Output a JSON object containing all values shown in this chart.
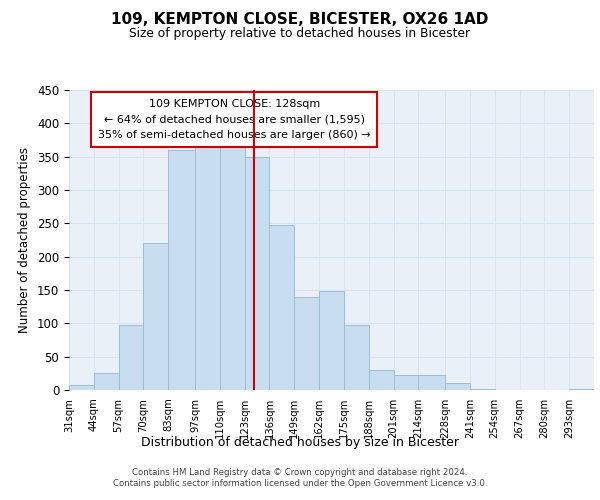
{
  "title": "109, KEMPTON CLOSE, BICESTER, OX26 1AD",
  "subtitle": "Size of property relative to detached houses in Bicester",
  "xlabel": "Distribution of detached houses by size in Bicester",
  "ylabel": "Number of detached properties",
  "bar_labels": [
    "31sqm",
    "44sqm",
    "57sqm",
    "70sqm",
    "83sqm",
    "97sqm",
    "110sqm",
    "123sqm",
    "136sqm",
    "149sqm",
    "162sqm",
    "175sqm",
    "188sqm",
    "201sqm",
    "214sqm",
    "228sqm",
    "241sqm",
    "254sqm",
    "267sqm",
    "280sqm",
    "293sqm"
  ],
  "bar_heights": [
    8,
    25,
    98,
    220,
    360,
    365,
    365,
    350,
    248,
    140,
    148,
    97,
    30,
    23,
    23,
    10,
    2,
    0,
    0,
    0,
    2
  ],
  "bar_color": "#c8ddf0",
  "bar_edge_color": "#9bbdd8",
  "property_line_x": 128,
  "property_line_label": "109 KEMPTON CLOSE: 128sqm",
  "annotation_line1": "← 64% of detached houses are smaller (1,595)",
  "annotation_line2": "35% of semi-detached houses are larger (860) →",
  "annotation_box_edge": "#cc0000",
  "annotation_box_facecolor": "#ffffff",
  "vline_color": "#cc0000",
  "ylim": [
    0,
    450
  ],
  "grid_color": "#d8e4f0",
  "background_color": "#eaf0f8",
  "footer_line1": "Contains HM Land Registry data © Crown copyright and database right 2024.",
  "footer_line2": "Contains public sector information licensed under the Open Government Licence v3.0.",
  "bin_edges": [
    31,
    44,
    57,
    70,
    83,
    97,
    110,
    123,
    136,
    149,
    162,
    175,
    188,
    201,
    214,
    228,
    241,
    254,
    267,
    280,
    293,
    306
  ]
}
